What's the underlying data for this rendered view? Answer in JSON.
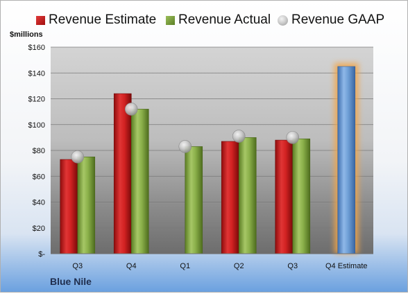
{
  "legend": {
    "estimate_label": "Revenue Estimate",
    "actual_label": "Revenue Actual",
    "gaap_label": "Revenue GAAP"
  },
  "colors": {
    "estimate": "#c8201f",
    "actual": "#7a9e3a",
    "gaap": "#b9b9b9",
    "projected": "#6f9fd6",
    "projected_glow": "#f2a64a"
  },
  "unit_label": "$millions",
  "company": "Blue Nile",
  "chart_data": {
    "type": "bar",
    "categories": [
      "Q3",
      "Q4",
      "Q1",
      "Q2",
      "Q3",
      "Q4 Estimate"
    ],
    "ylim": [
      0,
      160
    ],
    "ytick_values": [
      0,
      20,
      40,
      60,
      80,
      100,
      120,
      140,
      160
    ],
    "ytick_labels": [
      "$-",
      "$20",
      "$40",
      "$60",
      "$80",
      "$100",
      "$120",
      "$140",
      "$160"
    ],
    "grid": true,
    "legend_position": "top",
    "series": [
      {
        "name": "Revenue Estimate",
        "kind": "bar",
        "values": [
          73,
          124,
          null,
          87,
          88,
          145
        ]
      },
      {
        "name": "Revenue Actual",
        "kind": "bar",
        "values": [
          75,
          112,
          83,
          90,
          89,
          null
        ]
      },
      {
        "name": "Revenue GAAP",
        "kind": "marker",
        "values": [
          75,
          112,
          83,
          91,
          90,
          null
        ]
      }
    ]
  }
}
